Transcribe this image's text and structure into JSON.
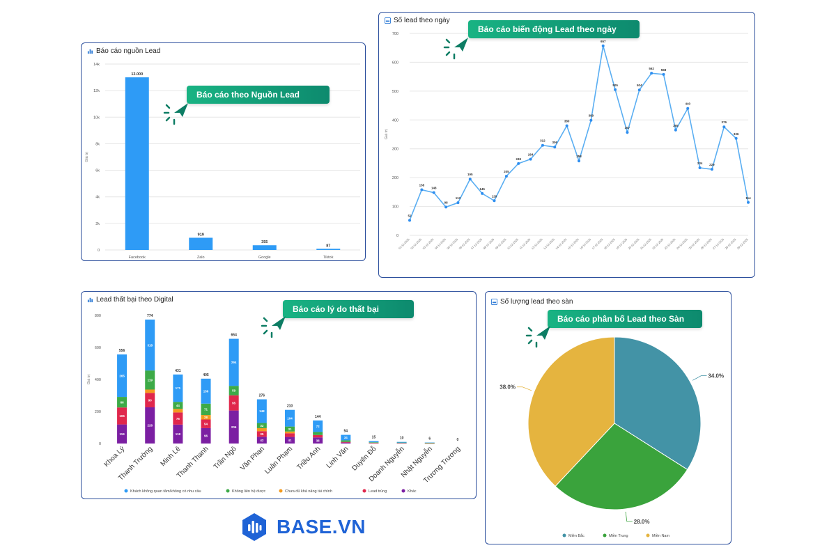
{
  "colors": {
    "blue": "#2e9bf6",
    "green": "#3daa47",
    "orange": "#f39a1e",
    "red": "#e0274c",
    "purple": "#7b1fa2",
    "teal": "#4393a6",
    "pie_green": "#3aa33c",
    "yellow": "#e5b43f",
    "callout": "#14a07b",
    "border": "#2b4e9c"
  },
  "brand": {
    "name": "BASE.VN"
  },
  "callouts": {
    "source": "Báo cáo theo Nguồn Lead",
    "daily": "Báo cáo biến động Lead theo ngày",
    "failed": "Báo cáo lý do thất bại",
    "floor": "Báo cáo phân bố Lead theo Sàn"
  },
  "chart_data": [
    {
      "id": "source",
      "type": "bar",
      "title": "Báo cáo nguồn Lead",
      "ylabel": "Giá trị",
      "categories": [
        "Facebook",
        "Zalo",
        "Google",
        "Tiktok"
      ],
      "values": [
        13000,
        919,
        355,
        87
      ],
      "value_labels": [
        "13.000",
        "919",
        "355",
        "87"
      ],
      "ylim": [
        0,
        14000
      ],
      "yticks": [
        0,
        2000,
        4000,
        6000,
        8000,
        10000,
        12000,
        14000
      ],
      "ytick_labels": [
        "0",
        "2k",
        "4k",
        "6k",
        "8k",
        "10k",
        "12k",
        "14k"
      ],
      "grid": true
    },
    {
      "id": "daily",
      "type": "line",
      "title": "Số lead theo ngày",
      "ylabel": "Giá trị",
      "x": [
        "01-12-2025",
        "02-12-2025",
        "03-12-2025",
        "04-12-2025",
        "05-12-2025",
        "06-12-2025",
        "07-12-2025",
        "08-12-2025",
        "09-12-2025",
        "10-12-2025",
        "11-12-2025",
        "12-12-2025",
        "13-12-2025",
        "14-12-2025",
        "15-12-2025",
        "16-12-2025",
        "17-12-2025",
        "18-12-2025",
        "19-12-2025",
        "20-12-2025",
        "21-12-2025",
        "22-12-2025",
        "23-12-2025",
        "24-12-2025",
        "25-12-2025",
        "26-12-2025",
        "27-12-2025",
        "28-12-2025",
        "29-12-2025"
      ],
      "values": [
        52,
        158,
        148,
        98,
        113,
        195,
        145,
        120,
        205,
        249,
        264,
        312,
        306,
        380,
        258,
        399,
        657,
        505,
        357,
        504,
        562,
        558,
        365,
        440,
        234,
        229,
        376,
        336,
        114
      ],
      "ylim": [
        0,
        700
      ],
      "yticks": [
        0,
        100,
        200,
        300,
        400,
        500,
        600,
        700
      ],
      "grid": true
    },
    {
      "id": "failed",
      "type": "bar",
      "stacked": true,
      "title": "Lead thất bại theo Digital",
      "ylabel": "Giá trị",
      "categories": [
        "Khoa Lý",
        "Thanh Trường",
        "Minh Lê",
        "Thanh Thanh",
        "Trần Ngô",
        "Văn Phan",
        "Luân Phạm",
        "Triều Anh",
        "Linh Văn",
        "Duyên Đỗ",
        "Doanh Nguyễn",
        "Nhật Nguyễn",
        "Trương Trương"
      ],
      "totals": [
        556,
        774,
        431,
        405,
        654,
        276,
        210,
        144,
        54,
        15,
        10,
        6,
        0
      ],
      "series": [
        {
          "name": "Khác",
          "values": [
            119,
            226,
            118,
            96,
            206,
            42,
            41,
            38,
            6,
            3,
            2,
            1,
            0
          ]
        },
        {
          "name": "Lead trùng",
          "values": [
            106,
            90,
            76,
            54,
            95,
            35,
            23,
            15,
            4,
            1,
            1,
            0,
            0
          ]
        },
        {
          "name": "Chưa đủ khả năng tài chính",
          "values": [
            0,
            21,
            22,
            28,
            0,
            19,
            11,
            0,
            0,
            1,
            0,
            1,
            0
          ]
        },
        {
          "name": "Không liên hệ được",
          "values": [
            66,
            119,
            44,
            71,
            59,
            32,
            31,
            19,
            10,
            3,
            3,
            3,
            0
          ]
        },
        {
          "name": "Khách không quan tâm/không có nhu cầu",
          "values": [
            265,
            318,
            171,
            156,
            294,
            148,
            104,
            72,
            34,
            7,
            4,
            1,
            0
          ]
        }
      ],
      "legend": [
        "Khách không quan tâm/không có nhu cầu",
        "Không liên hệ được",
        "Chưa đủ khả năng tài chính",
        "Lead trùng",
        "Khác"
      ],
      "ylim": [
        0,
        800
      ],
      "yticks": [
        0,
        200,
        400,
        600,
        800
      ],
      "grid": false,
      "legend_position": "bottom"
    },
    {
      "id": "floor",
      "type": "pie",
      "title": "Số lượng lead theo sàn",
      "labels": [
        "Miền Bắc",
        "Miền Trung",
        "Miền Nam"
      ],
      "values": [
        34.0,
        28.0,
        38.0
      ],
      "value_labels": [
        "34.0%",
        "28.0%",
        "38.0%"
      ],
      "legend_position": "bottom"
    }
  ]
}
